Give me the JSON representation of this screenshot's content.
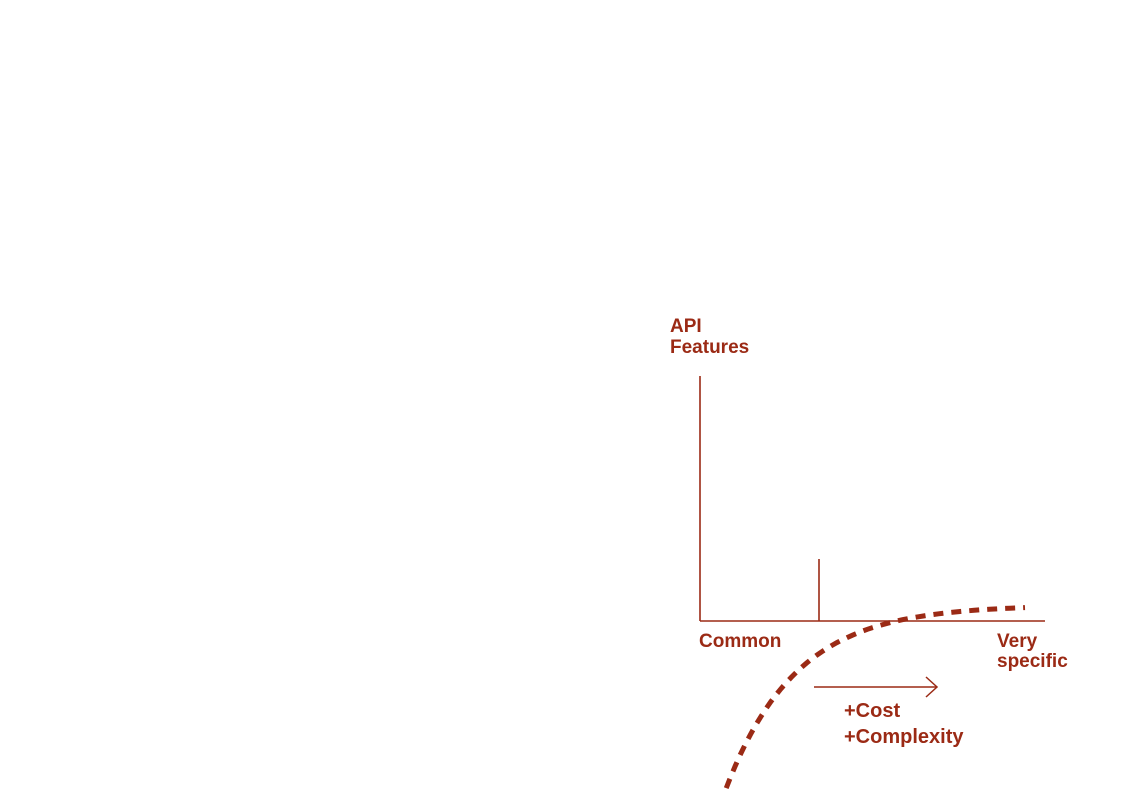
{
  "colors": {
    "accent": "#9b2a15",
    "fill": "#e6cbc4"
  },
  "axes": {
    "y_label_line1": "API",
    "y_label_line2": "Features",
    "x_start_label": "Common",
    "x_end_label_line1": "Very",
    "x_end_label_line2": "specific"
  },
  "arrow": {
    "cost_label": "+Cost",
    "complexity_label": "+Complexity"
  }
}
